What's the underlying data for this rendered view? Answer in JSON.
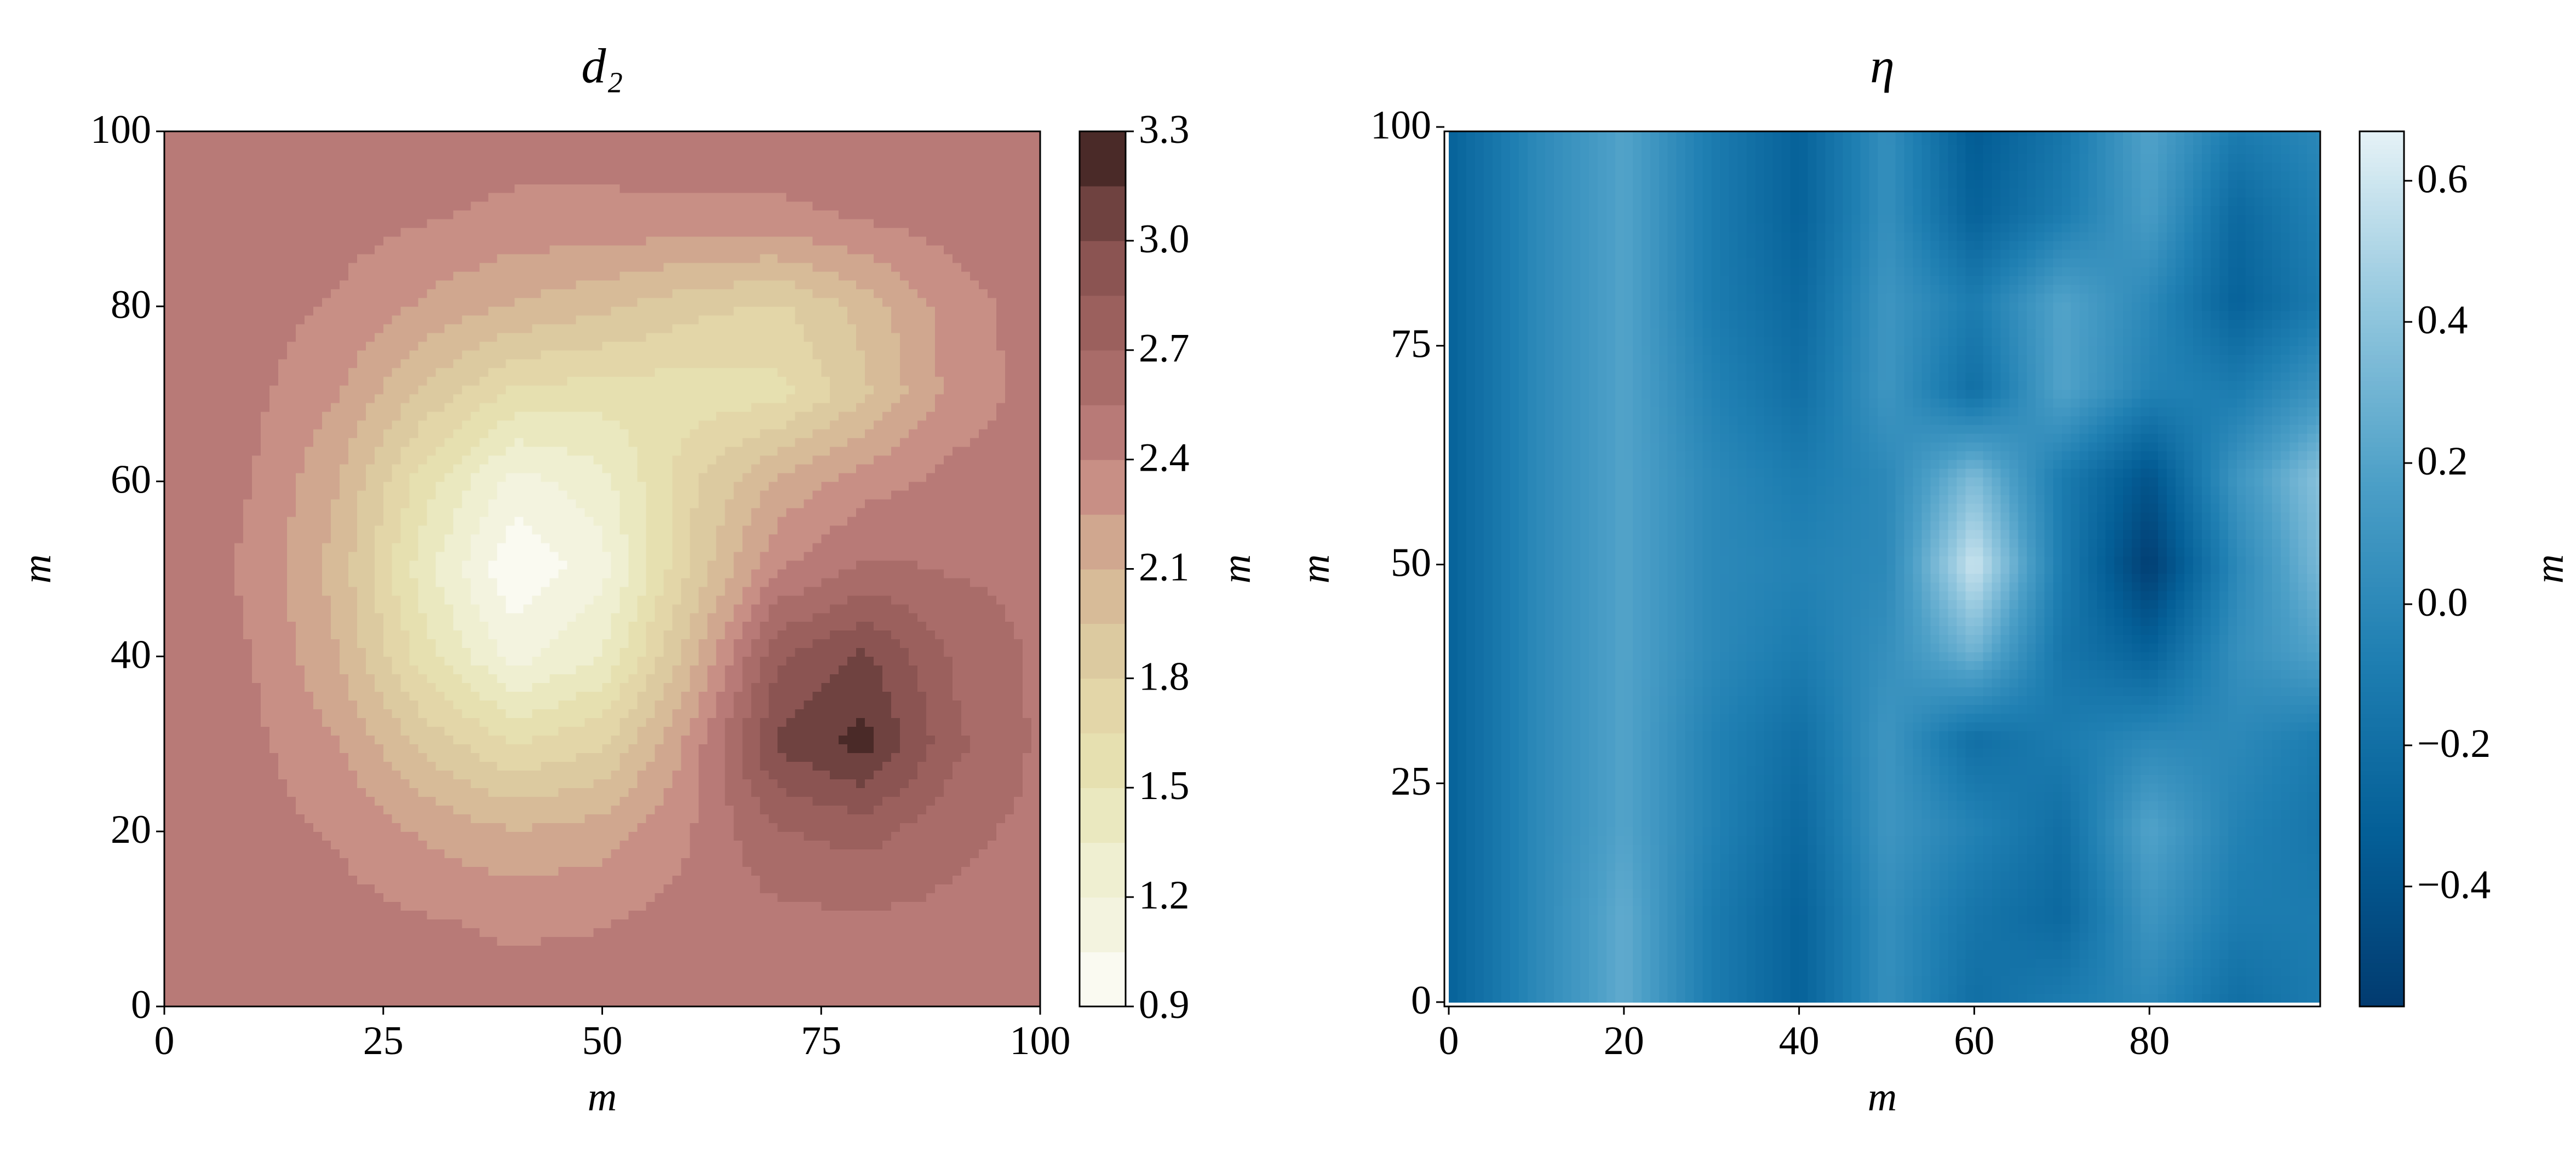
{
  "chart_data": [
    {
      "type": "contour",
      "title": "d₂",
      "xlabel": "m",
      "ylabel": "m",
      "colorbar_label": "m",
      "x": [
        0,
        10,
        20,
        30,
        40,
        50,
        60,
        70,
        80,
        90,
        100
      ],
      "y": [
        0,
        10,
        20,
        30,
        40,
        50,
        60,
        70,
        80,
        90,
        100
      ],
      "z": [
        [
          2.5,
          2.5,
          2.49,
          2.48,
          2.47,
          2.47,
          2.49,
          2.5,
          2.5,
          2.5,
          2.5
        ],
        [
          2.5,
          2.49,
          2.46,
          2.41,
          2.37,
          2.39,
          2.45,
          2.51,
          2.53,
          2.51,
          2.5
        ],
        [
          2.5,
          2.47,
          2.38,
          2.22,
          2.11,
          2.17,
          2.39,
          2.69,
          2.76,
          2.59,
          2.51
        ],
        [
          2.49,
          2.44,
          2.25,
          1.9,
          1.65,
          1.78,
          2.29,
          3.03,
          3.21,
          2.74,
          2.52
        ],
        [
          2.49,
          2.4,
          2.1,
          1.55,
          1.14,
          1.35,
          2.03,
          2.82,
          3.04,
          2.68,
          2.52
        ],
        [
          2.48,
          2.38,
          2.03,
          1.39,
          0.92,
          1.14,
          1.82,
          2.39,
          2.58,
          2.54,
          2.5
        ],
        [
          2.49,
          2.4,
          2.1,
          1.55,
          1.13,
          1.29,
          1.76,
          2.13,
          2.34,
          2.45,
          2.49
        ],
        [
          2.49,
          2.44,
          2.25,
          1.9,
          1.61,
          1.57,
          1.56,
          1.59,
          1.92,
          2.3,
          2.47
        ],
        [
          2.5,
          2.47,
          2.38,
          2.22,
          2.08,
          1.99,
          1.85,
          1.77,
          2.01,
          2.33,
          2.47
        ],
        [
          2.5,
          2.49,
          2.46,
          2.41,
          2.36,
          2.36,
          2.36,
          2.36,
          2.41,
          2.47,
          2.5
        ],
        [
          2.5,
          2.5,
          2.49,
          2.48,
          2.47,
          2.47,
          2.49,
          2.5,
          2.5,
          2.5,
          2.5
        ]
      ],
      "xlim": [
        0,
        100
      ],
      "ylim": [
        0,
        100
      ],
      "xticks": [
        0,
        25,
        50,
        75,
        100
      ],
      "yticks": [
        0,
        20,
        40,
        60,
        80,
        100
      ],
      "levels": [
        0.9,
        1.05,
        1.2,
        1.35,
        1.5,
        1.65,
        1.8,
        1.95,
        2.1,
        2.25,
        2.4,
        2.55,
        2.7,
        2.85,
        3,
        3.15,
        3.3
      ],
      "colors": [
        "#fafaf1",
        "#f3f3df",
        "#efefd1",
        "#eae8bf",
        "#e6e0b0",
        "#e3d6a8",
        "#dccaa0",
        "#d7bb98",
        "#d0a78f",
        "#c88f85",
        "#b87a77",
        "#a96c69",
        "#9b605d",
        "#8b5452",
        "#6f4240",
        "#4a2a28"
      ],
      "colorbar_ticks": [
        0.9,
        1.2,
        1.5,
        1.8,
        2.1,
        2.4,
        2.7,
        {
          "value": 3,
          "label": "3.0"
        },
        3.3
      ]
    },
    {
      "type": "heatmap",
      "title": "η",
      "xlabel": "m",
      "ylabel": "m",
      "colorbar_label": "m",
      "x": [
        0,
        10,
        20,
        30,
        40,
        50,
        60,
        70,
        80,
        90,
        100
      ],
      "y": [
        0,
        10,
        20,
        30,
        40,
        50,
        60,
        70,
        80,
        90,
        100
      ],
      "z": [
        [
          -0.3,
          0,
          0.25,
          -0.1,
          -0.3,
          0.05,
          -0.2,
          -0.1,
          0,
          -0.2,
          -0.1
        ],
        [
          -0.3,
          0,
          0.25,
          -0.1,
          -0.3,
          0.05,
          -0.15,
          -0.25,
          0.1,
          -0.1,
          -0.1
        ],
        [
          -0.3,
          0,
          0.2,
          -0.05,
          -0.25,
          0.1,
          -0.05,
          -0.2,
          0.2,
          -0.05,
          -0.15
        ],
        [
          -0.3,
          0,
          0.2,
          -0.05,
          -0.2,
          0.1,
          -0.2,
          -0.1,
          0,
          0,
          -0.1
        ],
        [
          -0.3,
          0,
          0.2,
          0,
          -0.1,
          0.05,
          0.3,
          -0.15,
          -0.3,
          0.05,
          0.2
        ],
        [
          -0.3,
          0,
          0.2,
          0,
          -0.05,
          0,
          0.6,
          -0.1,
          -0.55,
          0,
          0.35
        ],
        [
          -0.3,
          0,
          0.2,
          0,
          -0.1,
          0,
          0.35,
          -0.1,
          -0.4,
          0.1,
          0.4
        ],
        [
          -0.3,
          0,
          0.2,
          -0.05,
          -0.2,
          0.1,
          -0.2,
          0.2,
          -0.05,
          -0.1,
          0.1
        ],
        [
          -0.3,
          0,
          0.2,
          -0.1,
          -0.25,
          0.1,
          -0.1,
          0.2,
          0,
          -0.3,
          -0.1
        ],
        [
          -0.3,
          0,
          0.2,
          -0.1,
          -0.3,
          0.05,
          -0.3,
          -0.1,
          0.15,
          -0.25,
          -0.05
        ],
        [
          -0.3,
          0,
          0.2,
          -0.1,
          -0.3,
          0.05,
          -0.35,
          -0.15,
          0.2,
          -0.1,
          0
        ]
      ],
      "xlim": [
        -0.5,
        99.5
      ],
      "ylim": [
        -0.5,
        99.5
      ],
      "xticks": [
        0,
        20,
        40,
        60,
        80
      ],
      "yticks": [
        0,
        25,
        50,
        75,
        100
      ],
      "clim": [
        -0.57,
        0.67
      ],
      "colormap": [
        "#023b6f",
        "#045f97",
        "#1f7fb2",
        "#4c9fc7",
        "#93c7de",
        "#e5f2f6"
      ],
      "colorbar_ticks": [
        {
          "value": -0.4,
          "label": "−0.4"
        },
        {
          "value": -0.2,
          "label": "−0.2"
        },
        {
          "value": 0,
          "label": "0.0"
        },
        0.2,
        0.4,
        0.6
      ]
    }
  ]
}
